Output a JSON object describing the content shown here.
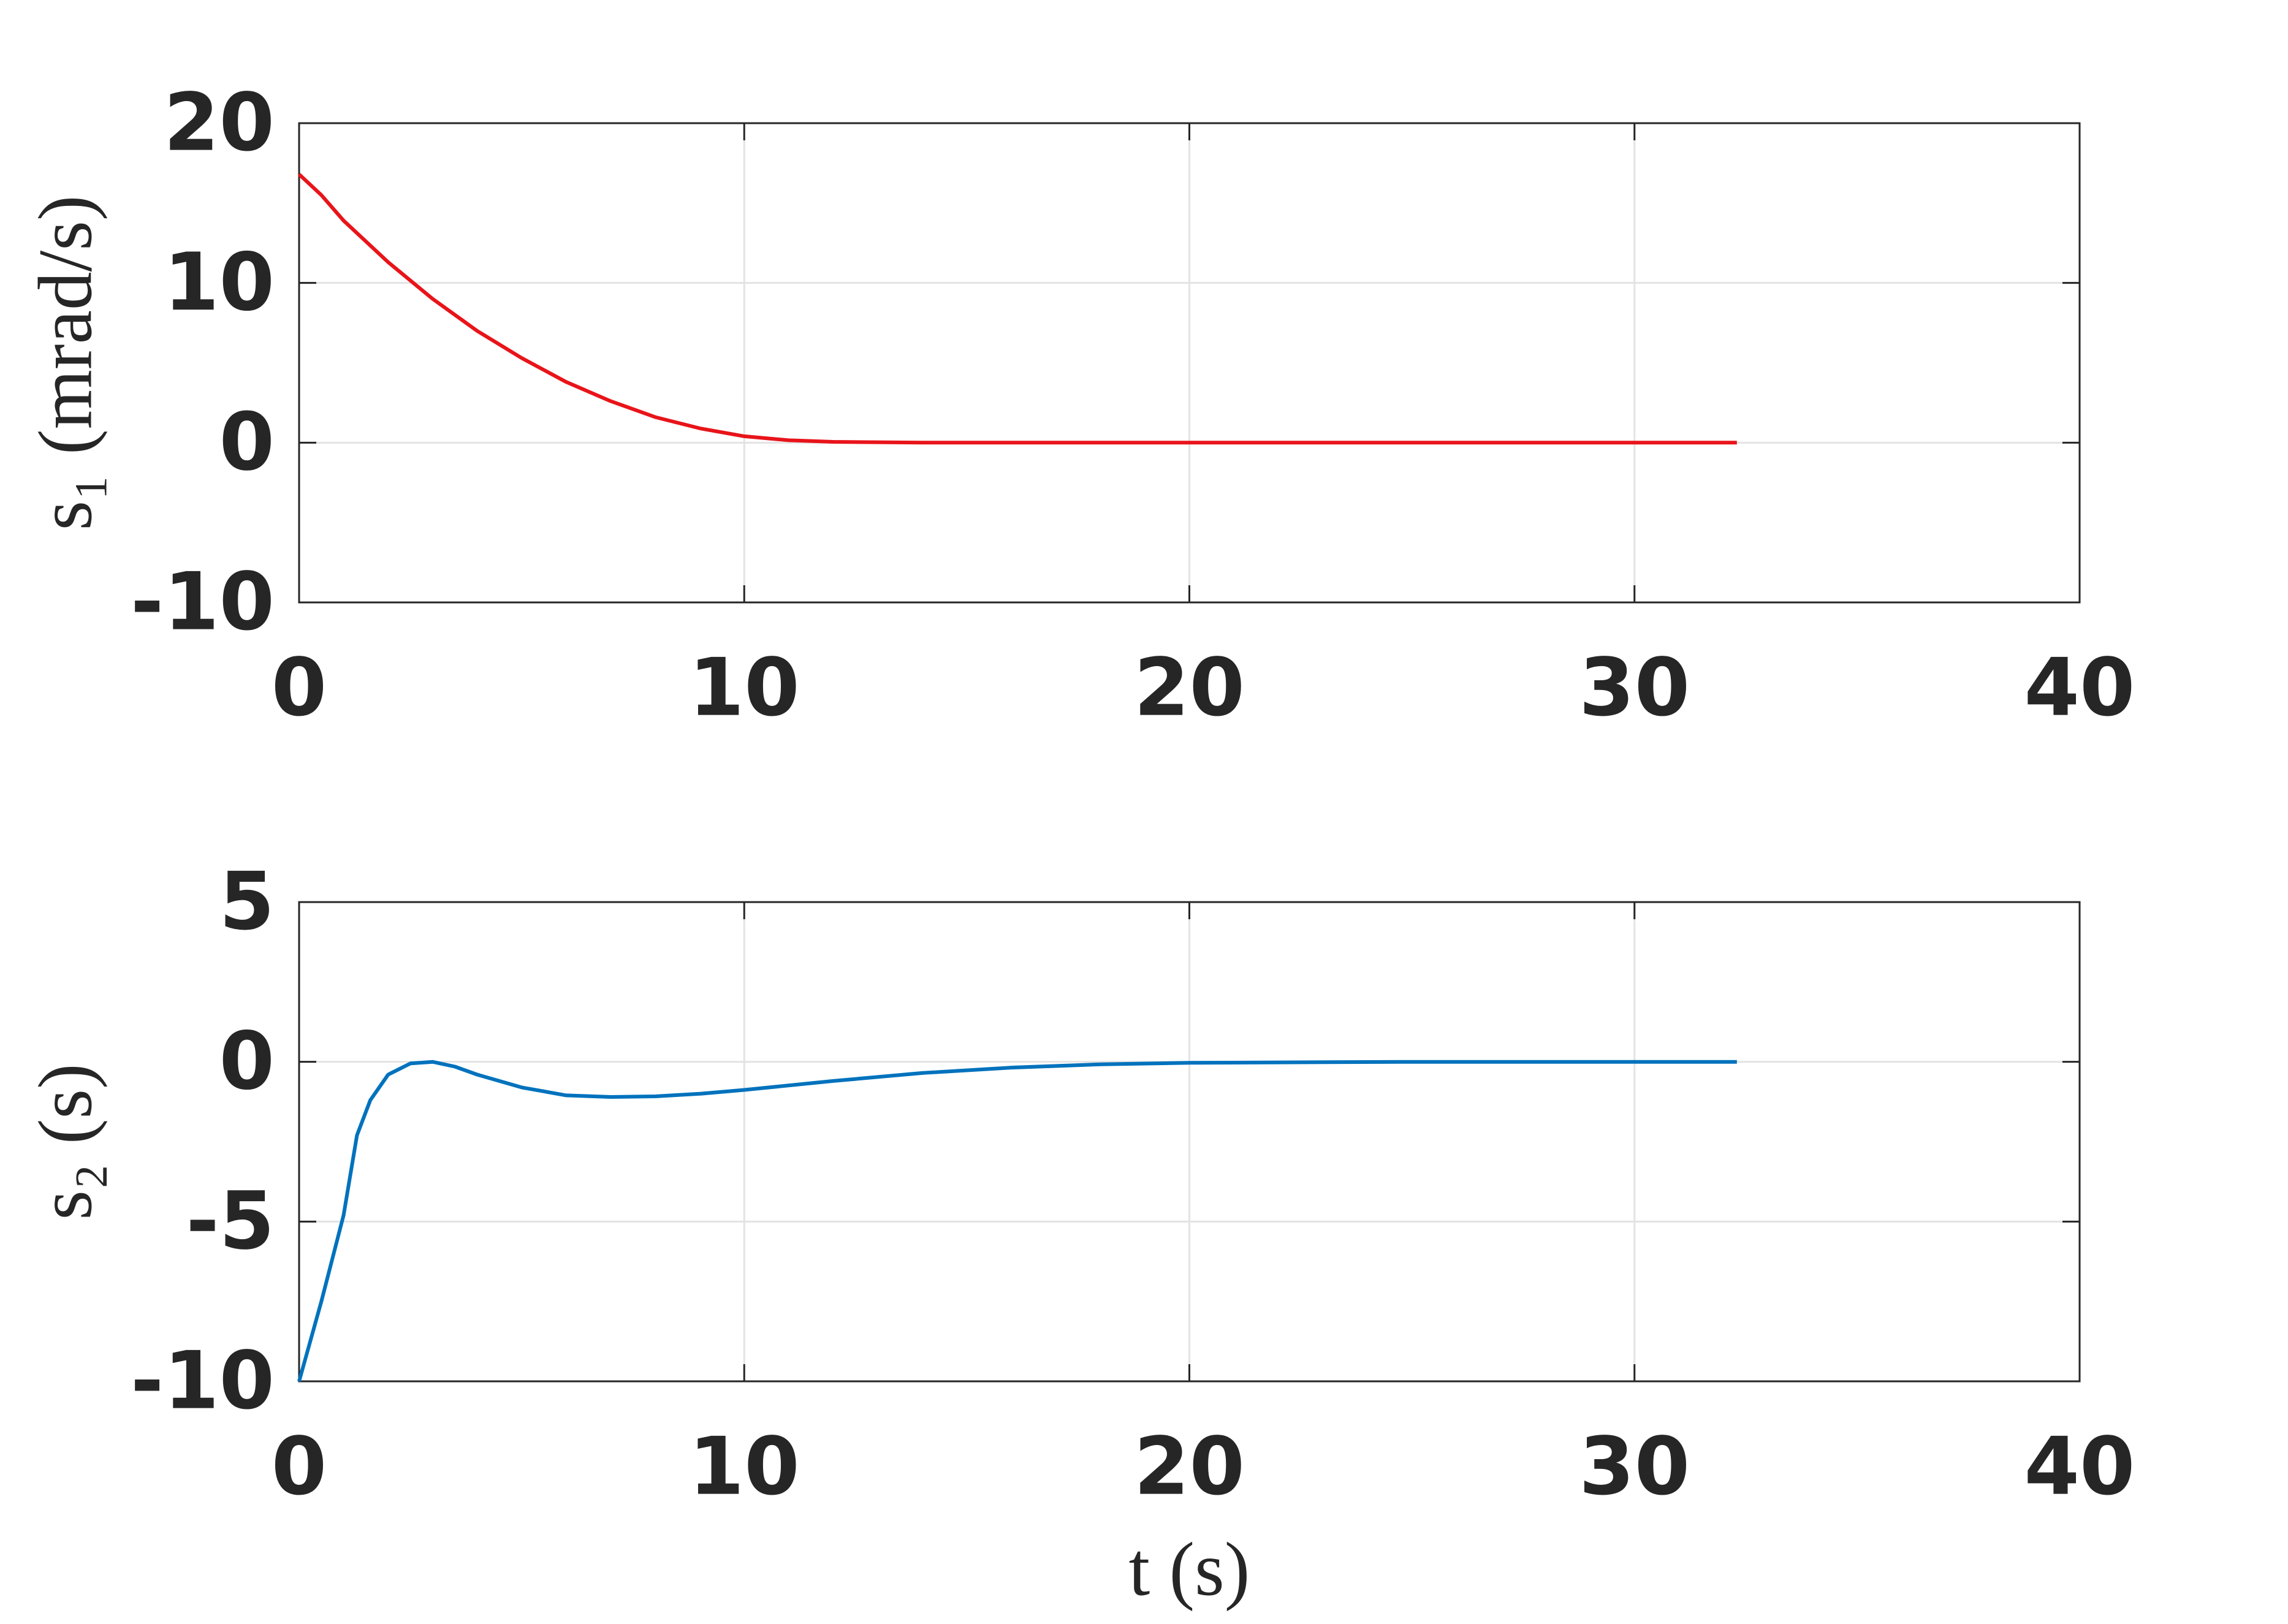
{
  "chart_data": [
    {
      "type": "line",
      "y_label": "s₁ (mrad/s)",
      "xlim": [
        0,
        40
      ],
      "xticks": [
        0,
        10,
        20,
        30,
        40
      ],
      "ylim": [
        -10,
        20
      ],
      "yticks": [
        -10,
        0,
        10,
        20
      ],
      "grid": true,
      "x": [
        0,
        0.5,
        1,
        2,
        3,
        4,
        5,
        6,
        7,
        8,
        9,
        10,
        11,
        12,
        14,
        20,
        32.3
      ],
      "series": [
        {
          "color": "#e8141a",
          "values": [
            16.8,
            15.5,
            13.9,
            11.3,
            9.0,
            7.0,
            5.3,
            3.8,
            2.6,
            1.6,
            0.9,
            0.4,
            0.15,
            0.05,
            0,
            0,
            0
          ]
        }
      ]
    },
    {
      "type": "line",
      "y_label": "s₂ (s)",
      "x_label": "t (s)",
      "xlim": [
        0,
        40
      ],
      "xticks": [
        0,
        10,
        20,
        30,
        40
      ],
      "ylim": [
        -10,
        5
      ],
      "yticks": [
        -10,
        -5,
        0,
        5
      ],
      "grid": true,
      "x": [
        0,
        0.5,
        1,
        1.3,
        1.6,
        2,
        2.5,
        3,
        3.5,
        4,
        5,
        6,
        7,
        8,
        9,
        10,
        12,
        14,
        16,
        18,
        20,
        25,
        32.3
      ],
      "series": [
        {
          "color": "#0072bd",
          "values": [
            -10,
            -7.5,
            -4.8,
            -2.3,
            -1.2,
            -0.4,
            -0.05,
            0,
            -0.15,
            -0.4,
            -0.8,
            -1.05,
            -1.1,
            -1.08,
            -1.0,
            -0.88,
            -0.6,
            -0.35,
            -0.18,
            -0.08,
            -0.03,
            0,
            0
          ]
        }
      ]
    }
  ]
}
